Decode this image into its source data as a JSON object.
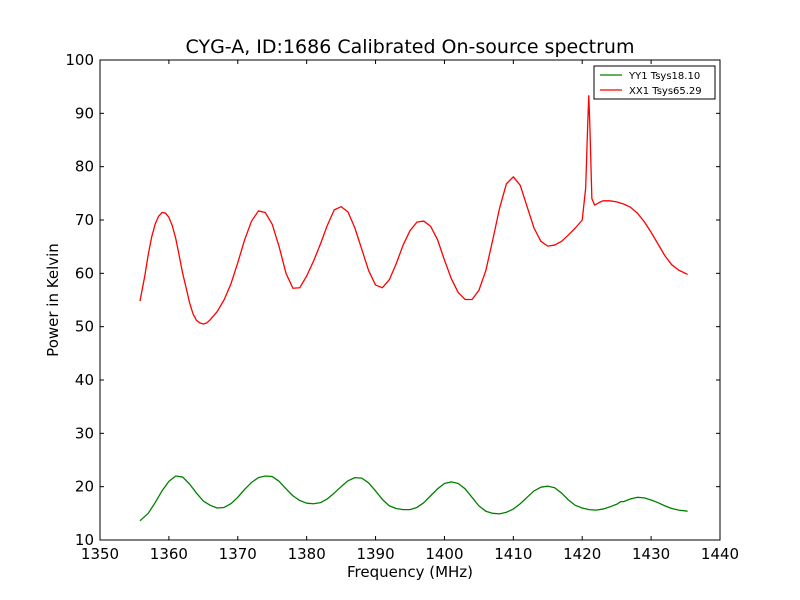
{
  "chart_data": {
    "type": "line",
    "title": "CYG-A, ID:1686 Calibrated On-source spectrum",
    "xlabel": "Frequency (MHz)",
    "ylabel": "Power in Kelvin",
    "xlim": [
      1350,
      1440
    ],
    "ylim": [
      10,
      100
    ],
    "xticks": [
      1350,
      1360,
      1370,
      1380,
      1390,
      1400,
      1410,
      1420,
      1430,
      1440
    ],
    "yticks": [
      10,
      20,
      30,
      40,
      50,
      60,
      70,
      80,
      90,
      100
    ],
    "grid": false,
    "legend_position": "top-right",
    "series": [
      {
        "name": "YY1 Tsys18.10",
        "color": "#008000",
        "points": [
          [
            1355.8,
            13.6
          ],
          [
            1357.0,
            15.0
          ],
          [
            1358.0,
            17.0
          ],
          [
            1359.0,
            19.2
          ],
          [
            1360.0,
            21.0
          ],
          [
            1361.0,
            22.0
          ],
          [
            1362.0,
            21.8
          ],
          [
            1363.0,
            20.5
          ],
          [
            1364.0,
            18.8
          ],
          [
            1365.0,
            17.3
          ],
          [
            1366.0,
            16.5
          ],
          [
            1367.0,
            16.0
          ],
          [
            1368.0,
            16.1
          ],
          [
            1369.0,
            16.8
          ],
          [
            1370.0,
            18.0
          ],
          [
            1371.0,
            19.5
          ],
          [
            1372.0,
            20.8
          ],
          [
            1373.0,
            21.7
          ],
          [
            1374.0,
            22.0
          ],
          [
            1375.0,
            21.9
          ],
          [
            1376.0,
            21.0
          ],
          [
            1377.0,
            19.6
          ],
          [
            1378.0,
            18.3
          ],
          [
            1379.0,
            17.4
          ],
          [
            1380.0,
            16.9
          ],
          [
            1381.0,
            16.8
          ],
          [
            1382.0,
            17.0
          ],
          [
            1383.0,
            17.7
          ],
          [
            1384.0,
            18.8
          ],
          [
            1385.0,
            20.0
          ],
          [
            1386.0,
            21.1
          ],
          [
            1387.0,
            21.7
          ],
          [
            1388.0,
            21.6
          ],
          [
            1389.0,
            20.7
          ],
          [
            1390.0,
            19.2
          ],
          [
            1391.0,
            17.6
          ],
          [
            1392.0,
            16.4
          ],
          [
            1393.0,
            15.9
          ],
          [
            1394.0,
            15.7
          ],
          [
            1395.0,
            15.7
          ],
          [
            1396.0,
            16.1
          ],
          [
            1397.0,
            17.0
          ],
          [
            1398.0,
            18.3
          ],
          [
            1399.0,
            19.6
          ],
          [
            1400.0,
            20.6
          ],
          [
            1401.0,
            20.9
          ],
          [
            1402.0,
            20.6
          ],
          [
            1403.0,
            19.6
          ],
          [
            1404.0,
            18.0
          ],
          [
            1405.0,
            16.4
          ],
          [
            1406.0,
            15.4
          ],
          [
            1407.0,
            15.0
          ],
          [
            1408.0,
            14.9
          ],
          [
            1409.0,
            15.2
          ],
          [
            1410.0,
            15.8
          ],
          [
            1411.0,
            16.8
          ],
          [
            1412.0,
            18.0
          ],
          [
            1413.0,
            19.2
          ],
          [
            1414.0,
            19.9
          ],
          [
            1415.0,
            20.1
          ],
          [
            1416.0,
            19.8
          ],
          [
            1417.0,
            18.8
          ],
          [
            1418.0,
            17.5
          ],
          [
            1419.0,
            16.5
          ],
          [
            1420.0,
            16.0
          ],
          [
            1421.0,
            15.7
          ],
          [
            1422.0,
            15.6
          ],
          [
            1423.0,
            15.8
          ],
          [
            1424.0,
            16.2
          ],
          [
            1425.0,
            16.7
          ],
          [
            1425.6,
            17.2
          ],
          [
            1426.0,
            17.2
          ],
          [
            1427.0,
            17.7
          ],
          [
            1428.0,
            18.0
          ],
          [
            1429.0,
            17.9
          ],
          [
            1430.0,
            17.5
          ],
          [
            1431.0,
            17.0
          ],
          [
            1432.0,
            16.4
          ],
          [
            1433.0,
            15.9
          ],
          [
            1434.0,
            15.6
          ],
          [
            1435.3,
            15.4
          ]
        ]
      },
      {
        "name": "XX1 Tsys65.29",
        "color": "#ff0000",
        "points": [
          [
            1355.8,
            54.8
          ],
          [
            1356.5,
            59.5
          ],
          [
            1357.0,
            63.5
          ],
          [
            1357.5,
            66.8
          ],
          [
            1358.0,
            69.2
          ],
          [
            1358.5,
            70.7
          ],
          [
            1359.0,
            71.4
          ],
          [
            1359.5,
            71.3
          ],
          [
            1360.0,
            70.5
          ],
          [
            1360.5,
            68.9
          ],
          [
            1361.0,
            66.5
          ],
          [
            1361.5,
            63.3
          ],
          [
            1362.0,
            60.0
          ],
          [
            1362.5,
            57.3
          ],
          [
            1363.0,
            54.5
          ],
          [
            1363.5,
            52.4
          ],
          [
            1364.0,
            51.2
          ],
          [
            1364.5,
            50.7
          ],
          [
            1365.0,
            50.5
          ],
          [
            1365.5,
            50.7
          ],
          [
            1366.0,
            51.3
          ],
          [
            1367.0,
            52.8
          ],
          [
            1368.0,
            55.0
          ],
          [
            1369.0,
            58.0
          ],
          [
            1370.0,
            62.0
          ],
          [
            1371.0,
            66.3
          ],
          [
            1372.0,
            69.8
          ],
          [
            1373.0,
            71.7
          ],
          [
            1374.0,
            71.4
          ],
          [
            1375.0,
            69.2
          ],
          [
            1376.0,
            65.0
          ],
          [
            1377.0,
            60.0
          ],
          [
            1378.0,
            57.2
          ],
          [
            1379.0,
            57.3
          ],
          [
            1380.0,
            59.5
          ],
          [
            1381.0,
            62.3
          ],
          [
            1382.0,
            65.5
          ],
          [
            1383.0,
            69.0
          ],
          [
            1384.0,
            71.9
          ],
          [
            1385.0,
            72.5
          ],
          [
            1386.0,
            71.5
          ],
          [
            1387.0,
            68.5
          ],
          [
            1388.0,
            64.5
          ],
          [
            1389.0,
            60.5
          ],
          [
            1390.0,
            57.8
          ],
          [
            1391.0,
            57.3
          ],
          [
            1392.0,
            58.8
          ],
          [
            1393.0,
            61.8
          ],
          [
            1394.0,
            65.3
          ],
          [
            1395.0,
            68.0
          ],
          [
            1396.0,
            69.6
          ],
          [
            1397.0,
            69.8
          ],
          [
            1398.0,
            68.8
          ],
          [
            1399.0,
            66.3
          ],
          [
            1400.0,
            62.5
          ],
          [
            1401.0,
            59.0
          ],
          [
            1402.0,
            56.4
          ],
          [
            1403.0,
            55.1
          ],
          [
            1404.0,
            55.1
          ],
          [
            1405.0,
            56.8
          ],
          [
            1406.0,
            60.5
          ],
          [
            1407.0,
            66.2
          ],
          [
            1408.0,
            72.2
          ],
          [
            1409.0,
            76.8
          ],
          [
            1410.0,
            78.1
          ],
          [
            1411.0,
            76.5
          ],
          [
            1412.0,
            72.5
          ],
          [
            1413.0,
            68.5
          ],
          [
            1414.0,
            66.0
          ],
          [
            1415.0,
            65.1
          ],
          [
            1416.0,
            65.3
          ],
          [
            1417.0,
            66.0
          ],
          [
            1418.0,
            67.2
          ],
          [
            1419.0,
            68.5
          ],
          [
            1420.0,
            70.0
          ],
          [
            1420.5,
            76.0
          ],
          [
            1420.8,
            88.0
          ],
          [
            1420.95,
            93.3
          ],
          [
            1421.1,
            88.0
          ],
          [
            1421.4,
            74.0
          ],
          [
            1421.8,
            72.8
          ],
          [
            1422.5,
            73.3
          ],
          [
            1423.0,
            73.6
          ],
          [
            1424.0,
            73.6
          ],
          [
            1425.0,
            73.4
          ],
          [
            1426.0,
            73.0
          ],
          [
            1427.0,
            72.4
          ],
          [
            1428.0,
            71.3
          ],
          [
            1429.0,
            69.7
          ],
          [
            1430.0,
            67.7
          ],
          [
            1431.0,
            65.5
          ],
          [
            1432.0,
            63.3
          ],
          [
            1433.0,
            61.6
          ],
          [
            1434.0,
            60.6
          ],
          [
            1435.3,
            59.8
          ]
        ]
      }
    ]
  }
}
